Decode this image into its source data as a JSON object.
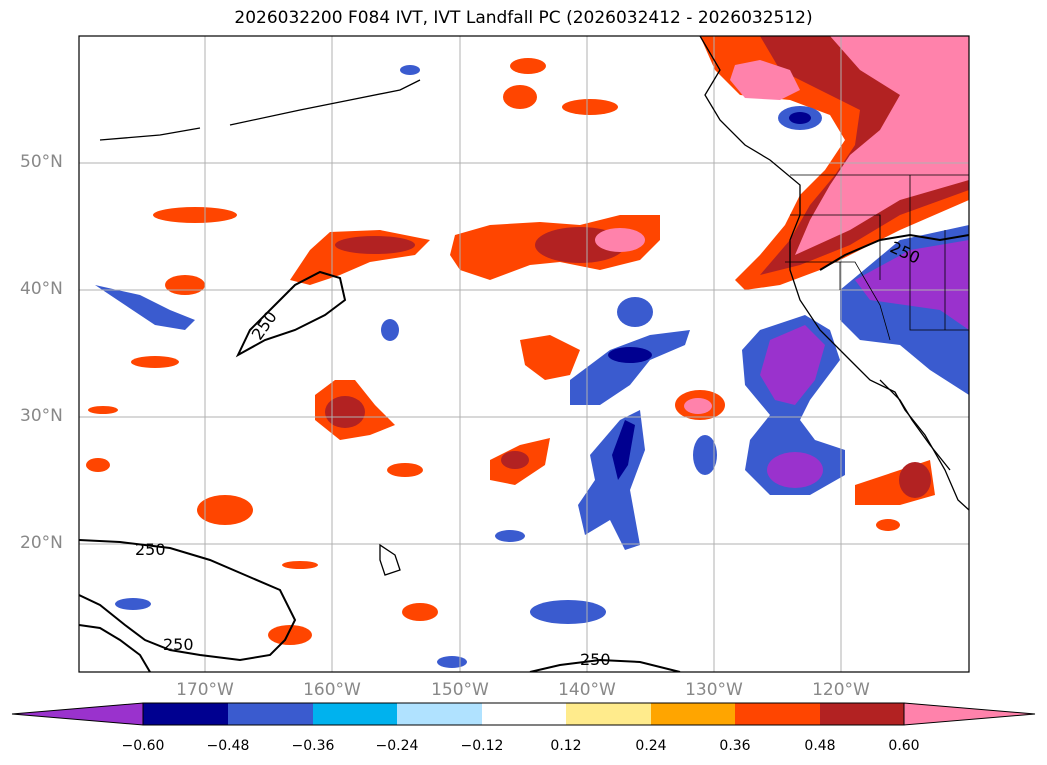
{
  "title": "2026032200 F084 IVT, IVT Landfall PC (2026032412 - 2026032512)",
  "lat_labels": [
    "50°N",
    "40°N",
    "30°N",
    "20°N"
  ],
  "lon_labels": [
    "170°W",
    "160°W",
    "150°W",
    "140°W",
    "130°W",
    "120°W"
  ],
  "contour_level": "250",
  "colorbar": {
    "colors": [
      "#9a32cd",
      "#000090",
      "#3a5bcf",
      "#00b2ee",
      "#b0e2ff",
      "#ffffff",
      "#ffeb8c",
      "#ffa500",
      "#ff4500",
      "#b22222",
      "#ff82ab"
    ],
    "tick_labels": [
      "−0.60",
      "−0.48",
      "−0.36",
      "−0.24",
      "−0.12",
      "0.12",
      "0.24",
      "0.36",
      "0.48",
      "0.60"
    ]
  },
  "colors": {
    "neg_purple": "#9a32cd",
    "neg_navy": "#000090",
    "neg_blue": "#3a5bcf",
    "neg_cyan": "#00b2ee",
    "neg_light": "#b0e2ff",
    "pos_yellow": "#ffeb8c",
    "pos_orange": "#ffa500",
    "pos_red": "#ff4500",
    "pos_darkred": "#b22222",
    "pos_pink": "#ff82ab"
  }
}
